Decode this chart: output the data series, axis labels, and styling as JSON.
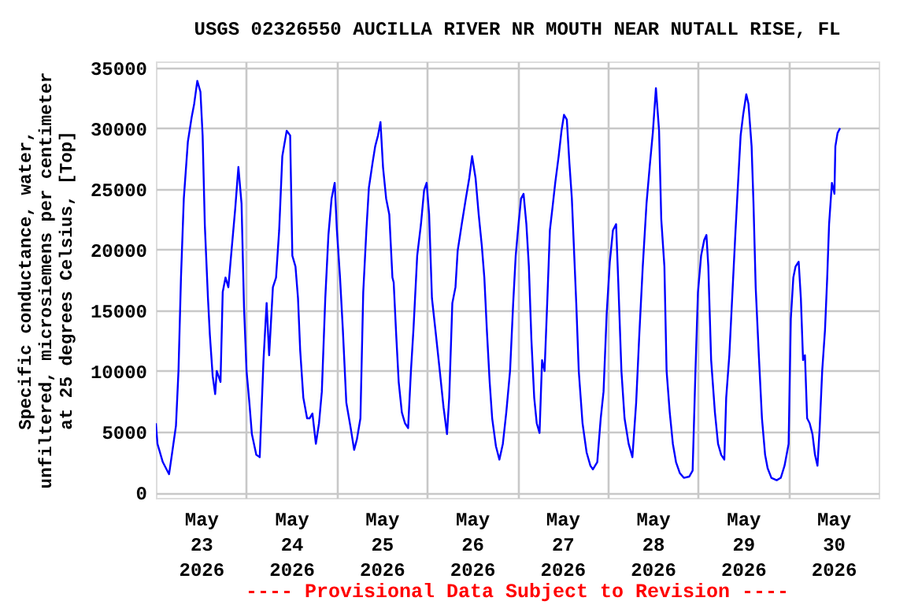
{
  "chart_data": {
    "type": "line",
    "title": "USGS 02326550 AUCILLA RIVER NR MOUTH NEAR NUTALL RISE, FL",
    "ylabel": "Specific conductance, water,\nunfiltered, microsiemens per centimeter\nat 25 degrees Celsius, [Top]",
    "annotations": [
      "---- Provisional Data Subject to Revision ----"
    ],
    "xlim": [
      "2026-05-23T00:00",
      "2026-05-31T00:00"
    ],
    "xticks": [
      {
        "value": "2026-05-23T12:00",
        "label": "May\n23\n2026"
      },
      {
        "value": "2026-05-24T00:00",
        "label": null
      },
      {
        "value": "2026-05-24T12:00",
        "label": "May\n24\n2026"
      },
      {
        "value": "2026-05-25T00:00",
        "label": null
      },
      {
        "value": "2026-05-25T12:00",
        "label": "May\n25\n2026"
      },
      {
        "value": "2026-05-26T00:00",
        "label": null
      },
      {
        "value": "2026-05-26T12:00",
        "label": "May\n26\n2026"
      },
      {
        "value": "2026-05-27T00:00",
        "label": null
      },
      {
        "value": "2026-05-27T12:00",
        "label": "May\n27\n2026"
      },
      {
        "value": "2026-05-28T00:00",
        "label": null
      },
      {
        "value": "2026-05-28T12:00",
        "label": "May\n28\n2026"
      },
      {
        "value": "2026-05-29T00:00",
        "label": null
      },
      {
        "value": "2026-05-29T12:00",
        "label": "May\n29\n2026"
      },
      {
        "value": "2026-05-30T00:00",
        "label": null
      },
      {
        "value": "2026-05-30T12:00",
        "label": "May\n30\n2026"
      }
    ],
    "ylim": [
      -450,
      35500
    ],
    "yticks": [
      0,
      5000,
      10000,
      15000,
      20000,
      25000,
      30000,
      35000
    ],
    "grid": true,
    "x": [
      "2026-05-23T00:00",
      "2026-05-23T00:25",
      "2026-05-23T01:50",
      "2026-05-23T03:30",
      "2026-05-23T04:20",
      "2026-05-23T05:20",
      "2026-05-23T06:00",
      "2026-05-23T06:40",
      "2026-05-23T07:25",
      "2026-05-23T08:30",
      "2026-05-23T09:30",
      "2026-05-23T10:10",
      "2026-05-23T11:00",
      "2026-05-23T11:50",
      "2026-05-23T12:25",
      "2026-05-23T13:00",
      "2026-05-23T13:50",
      "2026-05-23T14:20",
      "2026-05-23T15:05",
      "2026-05-23T15:45",
      "2026-05-23T16:10",
      "2026-05-23T17:10",
      "2026-05-23T17:45",
      "2026-05-23T18:30",
      "2026-05-23T19:15",
      "2026-05-23T19:55",
      "2026-05-23T21:05",
      "2026-05-23T21:55",
      "2026-05-23T22:45",
      "2026-05-23T23:25",
      "2026-05-24T00:05",
      "2026-05-24T00:50",
      "2026-05-24T01:30",
      "2026-05-24T02:40",
      "2026-05-24T03:35",
      "2026-05-24T04:35",
      "2026-05-24T05:25",
      "2026-05-24T06:05",
      "2026-05-24T07:05",
      "2026-05-24T07:55",
      "2026-05-24T08:45",
      "2026-05-24T09:35",
      "2026-05-24T10:45",
      "2026-05-24T11:40",
      "2026-05-24T12:15",
      "2026-05-24T13:05",
      "2026-05-24T13:45",
      "2026-05-24T14:20",
      "2026-05-24T15:10",
      "2026-05-24T16:10",
      "2026-05-24T16:50",
      "2026-05-24T17:35",
      "2026-05-24T18:30",
      "2026-05-24T19:20",
      "2026-05-24T20:05",
      "2026-05-24T21:00",
      "2026-05-24T21:50",
      "2026-05-24T22:40",
      "2026-05-24T23:30",
      "2026-05-25T00:05",
      "2026-05-25T00:55",
      "2026-05-25T01:40",
      "2026-05-25T02:35",
      "2026-05-25T03:45",
      "2026-05-25T04:40",
      "2026-05-25T05:25",
      "2026-05-25T06:20",
      "2026-05-25T07:05",
      "2026-05-25T07:55",
      "2026-05-25T08:35",
      "2026-05-25T09:35",
      "2026-05-25T10:15",
      "2026-05-25T11:00",
      "2026-05-25T11:40",
      "2026-05-25T12:20",
      "2026-05-25T13:10",
      "2026-05-25T14:00",
      "2026-05-25T14:50",
      "2026-05-25T15:10",
      "2026-05-25T15:50",
      "2026-05-25T16:30",
      "2026-05-25T17:20",
      "2026-05-25T18:10",
      "2026-05-25T19:00",
      "2026-05-25T19:45",
      "2026-05-25T20:25",
      "2026-05-25T21:25",
      "2026-05-25T22:25",
      "2026-05-25T23:15",
      "2026-05-25T23:55",
      "2026-05-26T00:35",
      "2026-05-26T01:20",
      "2026-05-26T02:15",
      "2026-05-26T03:25",
      "2026-05-26T04:25",
      "2026-05-26T05:20",
      "2026-05-26T05:55",
      "2026-05-26T06:45",
      "2026-05-26T07:35",
      "2026-05-26T08:10",
      "2026-05-26T09:15",
      "2026-05-26T10:20",
      "2026-05-26T11:15",
      "2026-05-26T12:00",
      "2026-05-26T12:55",
      "2026-05-26T13:45",
      "2026-05-26T14:35",
      "2026-05-26T15:15",
      "2026-05-26T15:55",
      "2026-05-26T16:40",
      "2026-05-26T17:20",
      "2026-05-26T18:20",
      "2026-05-26T19:15",
      "2026-05-26T20:10",
      "2026-05-26T21:05",
      "2026-05-26T22:05",
      "2026-05-26T22:55",
      "2026-05-26T23:35",
      "2026-05-27T00:20",
      "2026-05-27T01:00",
      "2026-05-27T01:40",
      "2026-05-27T02:25",
      "2026-05-27T03:05",
      "2026-05-27T03:45",
      "2026-05-27T04:30",
      "2026-05-27T05:10",
      "2026-05-27T05:55",
      "2026-05-27T06:35",
      "2026-05-27T07:15",
      "2026-05-27T08:00",
      "2026-05-27T08:40",
      "2026-05-27T09:20",
      "2026-05-27T10:05",
      "2026-05-27T11:00",
      "2026-05-27T11:45",
      "2026-05-27T12:25",
      "2026-05-27T13:10",
      "2026-05-27T13:50",
      "2026-05-27T14:30",
      "2026-05-27T15:40",
      "2026-05-27T16:20",
      "2026-05-27T17:20",
      "2026-05-27T18:25",
      "2026-05-27T19:25",
      "2026-05-27T20:05",
      "2026-05-27T21:15",
      "2026-05-27T22:10",
      "2026-05-27T22:55",
      "2026-05-27T23:45",
      "2026-05-28T00:35",
      "2026-05-28T01:25",
      "2026-05-28T02:15",
      "2026-05-28T02:50",
      "2026-05-28T03:40",
      "2026-05-28T04:30",
      "2026-05-28T05:35",
      "2026-05-28T06:35",
      "2026-05-28T07:35",
      "2026-05-28T08:25",
      "2026-05-28T09:20",
      "2026-05-28T10:20",
      "2026-05-28T11:10",
      "2026-05-28T12:00",
      "2026-05-28T12:50",
      "2026-05-28T13:40",
      "2026-05-28T14:15",
      "2026-05-28T15:05",
      "2026-05-28T15:40",
      "2026-05-28T16:30",
      "2026-05-28T17:20",
      "2026-05-28T18:10",
      "2026-05-28T19:10",
      "2026-05-28T20:15",
      "2026-05-28T21:40",
      "2026-05-28T22:35",
      "2026-05-28T23:20",
      "2026-05-29T00:00",
      "2026-05-29T00:50",
      "2026-05-29T01:40",
      "2026-05-29T02:15",
      "2026-05-29T02:45",
      "2026-05-29T03:30",
      "2026-05-29T04:30",
      "2026-05-29T05:20",
      "2026-05-29T06:10",
      "2026-05-29T07:00",
      "2026-05-29T07:30",
      "2026-05-29T08:20",
      "2026-05-29T09:05",
      "2026-05-29T09:55",
      "2026-05-29T10:35",
      "2026-05-29T11:20",
      "2026-05-29T12:00",
      "2026-05-29T12:50",
      "2026-05-29T13:25",
      "2026-05-29T14:15",
      "2026-05-29T14:45",
      "2026-05-29T15:20",
      "2026-05-29T16:10",
      "2026-05-29T17:00",
      "2026-05-29T17:50",
      "2026-05-29T18:30",
      "2026-05-29T19:30",
      "2026-05-29T20:55",
      "2026-05-29T22:00",
      "2026-05-29T23:00",
      "2026-05-30T00:05",
      "2026-05-30T00:40",
      "2026-05-30T01:20",
      "2026-05-30T01:55",
      "2026-05-30T02:45",
      "2026-05-30T03:20",
      "2026-05-30T03:55",
      "2026-05-30T04:25",
      "2026-05-30T05:00",
      "2026-05-30T05:40",
      "2026-05-30T06:25",
      "2026-05-30T07:05",
      "2026-05-30T07:45",
      "2026-05-30T08:20",
      "2026-05-30T09:00",
      "2026-05-30T09:45",
      "2026-05-30T10:20",
      "2026-05-30T10:50",
      "2026-05-30T11:35",
      "2026-05-30T12:15",
      "2026-05-30T12:30",
      "2026-05-30T13:05",
      "2026-05-30T13:45"
    ],
    "series": [
      {
        "color": "#0000ff",
        "values": [
          5700,
          4000,
          2500,
          1500,
          3300,
          5500,
          10000,
          17700,
          24200,
          28900,
          30900,
          32000,
          33900,
          33000,
          29400,
          22000,
          16000,
          13000,
          9600,
          8100,
          10000,
          9100,
          16500,
          17700,
          16900,
          19300,
          23400,
          26800,
          23800,
          15200,
          10000,
          7400,
          4800,
          3100,
          2900,
          10900,
          15600,
          11300,
          16900,
          17700,
          21600,
          27700,
          29800,
          29400,
          19500,
          18600,
          16000,
          11700,
          7800,
          6100,
          6100,
          6500,
          4000,
          5700,
          8300,
          16000,
          21200,
          24200,
          25500,
          21600,
          17700,
          13400,
          7400,
          5300,
          3500,
          4400,
          6100,
          16500,
          21600,
          25100,
          27200,
          28500,
          29400,
          30500,
          26800,
          24200,
          22900,
          17700,
          17300,
          13000,
          9100,
          6600,
          5700,
          5300,
          10000,
          13400,
          19500,
          22100,
          24900,
          25500,
          22900,
          16000,
          13400,
          10000,
          7000,
          4800,
          7800,
          15600,
          16900,
          19900,
          22100,
          24200,
          25900,
          27700,
          25900,
          22900,
          20300,
          17700,
          13400,
          9100,
          6100,
          3800,
          2700,
          4000,
          6600,
          10000,
          15600,
          19500,
          22100,
          24200,
          24600,
          22100,
          18600,
          12600,
          7800,
          5700,
          4900,
          10900,
          10000,
          16000,
          21600,
          23400,
          25500,
          27700,
          29800,
          31100,
          30700,
          27200,
          24200,
          15600,
          10000,
          5700,
          3300,
          2200,
          1900,
          2500,
          6100,
          8300,
          14700,
          19000,
          21600,
          22100,
          17300,
          10000,
          6100,
          4000,
          2900,
          7400,
          13000,
          18600,
          23800,
          26800,
          29600,
          33300,
          29800,
          22500,
          18600,
          10000,
          6600,
          4000,
          2500,
          1600,
          1200,
          1300,
          1800,
          10000,
          16500,
          19500,
          20800,
          21200,
          18600,
          10900,
          6600,
          4000,
          3100,
          2700,
          7800,
          11300,
          16000,
          21200,
          25100,
          29400,
          31100,
          32800,
          32000,
          28500,
          23800,
          16900,
          11300,
          6100,
          3100,
          2000,
          1200,
          1000,
          1200,
          2200,
          4000,
          14300,
          17700,
          18600,
          19000,
          16000,
          10900,
          11300,
          6100,
          5700,
          4800,
          3100,
          2200,
          5300,
          10000,
          13400,
          17700,
          22100,
          25500,
          24600,
          28500,
          29600,
          30000
        ]
      }
    ]
  }
}
